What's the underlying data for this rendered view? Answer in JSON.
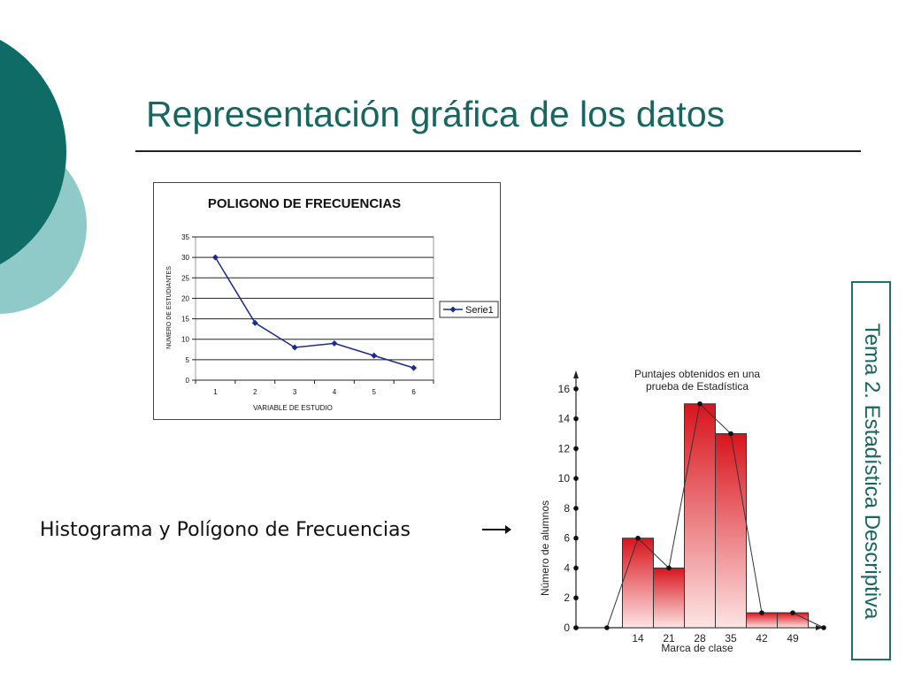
{
  "slide": {
    "title": "Representación gráfica de los datos",
    "caption": "Histograma y Polígono de Frecuencias",
    "side_label": "Tema 2. Estadística Descriptiva"
  },
  "colors": {
    "teal_dark": "#0e6b66",
    "teal_light": "#8fcac8",
    "title_text": "#17665f",
    "series_blue": "#1a2d8f",
    "bar_red": "#d8141c"
  },
  "icons": {
    "caption_arrow": "arrow-right-icon"
  },
  "chart_data": [
    {
      "type": "line",
      "title": "POLIGONO DE FRECUENCIAS",
      "xlabel": "VARIABLE DE ESTUDIO",
      "ylabel": "NUMERO DE ESTUDIANTES",
      "x": [
        "1",
        "2",
        "3",
        "4",
        "5",
        "6"
      ],
      "yticks": [
        "0",
        "5",
        "10",
        "15",
        "20",
        "25",
        "30",
        "35"
      ],
      "ylim": [
        0,
        35
      ],
      "grid": true,
      "legend": "right",
      "series": [
        {
          "name": "Serie1",
          "values": [
            30,
            14,
            8,
            9,
            6,
            3
          ]
        }
      ]
    },
    {
      "type": "bar",
      "title": "Puntajes obtenidos en una",
      "subtitle": "prueba de Estadística",
      "xlabel": "Marca de clase",
      "ylabel": "Número de alumnos",
      "categories": [
        "14",
        "21",
        "28",
        "35",
        "42",
        "49"
      ],
      "values": [
        6,
        4,
        15,
        13,
        1,
        1
      ],
      "yticks": [
        "0",
        "2",
        "4",
        "6",
        "8",
        "10",
        "12",
        "14",
        "16"
      ],
      "ylim": [
        0,
        17
      ],
      "polygon": {
        "x": [
          0,
          7,
          14,
          21,
          28,
          35,
          42,
          49,
          56
        ],
        "y": [
          0,
          0,
          6,
          4,
          15,
          13,
          1,
          1,
          0
        ]
      }
    }
  ]
}
